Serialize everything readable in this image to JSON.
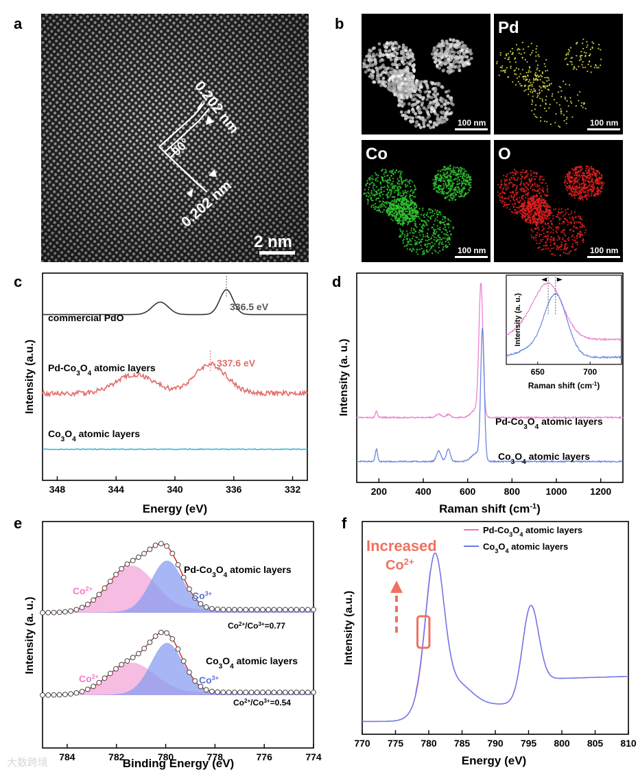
{
  "panels": {
    "a": {
      "letter": "a",
      "annotation_top": "0.202 nm",
      "annotation_bottom": "0.202 nm",
      "angle": "90°",
      "scale": "2 nm"
    },
    "b": {
      "letter": "b",
      "tiles": [
        {
          "name": "",
          "scale": "100 nm"
        },
        {
          "name": "Pd",
          "scale": "100 nm",
          "color": "#e5e54a"
        },
        {
          "name": "Co",
          "scale": "100 nm",
          "color": "#2fc42f"
        },
        {
          "name": "O",
          "scale": "100 nm",
          "color": "#e02020"
        }
      ]
    }
  },
  "chart_data": [
    {
      "panel": "c",
      "type": "line",
      "xlabel": "Energy (eV)",
      "ylabel": "Intensity (a.u.)",
      "xlim": [
        349,
        331
      ],
      "xticks": [
        348,
        344,
        340,
        336,
        332
      ],
      "series": [
        {
          "name": "commercial PdO",
          "color": "#333333",
          "offset": 0.8,
          "peaks": [
            [
              341.0,
              0.06,
              0.55
            ],
            [
              336.5,
              0.12,
              0.45
            ]
          ],
          "noise": 0.0
        },
        {
          "name": "Pd-Co3O4 atomic layers",
          "color": "#e46a6a",
          "offset": 0.42,
          "peaks": [
            [
              342.7,
              0.09,
              1.3
            ],
            [
              337.6,
              0.14,
              1.1
            ]
          ],
          "noise": 0.012
        },
        {
          "name": "Co3O4 atomic layers",
          "color": "#3ab8d8",
          "offset": 0.15,
          "peaks": [],
          "noise": 0.002
        }
      ],
      "annotations": [
        {
          "text": "336.5 eV",
          "x": 336.5,
          "color": "#555555"
        },
        {
          "text": "337.6 eV",
          "x": 337.6,
          "color": "#e46a6a"
        }
      ]
    },
    {
      "panel": "d",
      "type": "line",
      "xlabel": "Raman shift (cm-1)",
      "ylabel": "Intensity (a. u.)",
      "xlim": [
        100,
        1300
      ],
      "xticks": [
        200,
        400,
        600,
        800,
        1000,
        1200
      ],
      "series": [
        {
          "name": "Pd-Co3O4 atomic layers",
          "color": "#ee82d0",
          "offset": 0.31,
          "peaks": [
            [
              189,
              0.03,
              5
            ],
            [
              470,
              0.015,
              12
            ],
            [
              513,
              0.015,
              10
            ],
            [
              660,
              0.62,
              9
            ]
          ]
        },
        {
          "name": "Co3O4 atomic layers",
          "color": "#6a85e0",
          "offset": 0.1,
          "peaks": [
            [
              189,
              0.06,
              5
            ],
            [
              470,
              0.05,
              10
            ],
            [
              513,
              0.06,
              9
            ],
            [
              667,
              0.62,
              8
            ]
          ]
        }
      ],
      "inset": {
        "xlabel": "Raman shift (cm-1)",
        "ylabel": "Intensity (a. u.)",
        "xlim": [
          620,
          730
        ],
        "xticks": [
          650,
          700
        ]
      }
    },
    {
      "panel": "e",
      "type": "area",
      "xlabel": "Binding Energy (eV)",
      "ylabel": "Intensity (a. u.)",
      "xlim": [
        785,
        774
      ],
      "xticks": [
        784,
        782,
        780,
        778,
        776,
        774
      ],
      "groups": [
        {
          "name": "Pd-Co3O4 atomic layers",
          "ratio": "Co2+/Co3+=0.77",
          "co2_center": 781.4,
          "co2_amp": 0.72,
          "co3_center": 779.95,
          "co3_amp": 0.78
        },
        {
          "name": "Co3O4 atomic layers",
          "ratio": "Co2+/Co3+=0.54",
          "co2_center": 781.4,
          "co2_amp": 0.55,
          "co3_center": 779.95,
          "co3_amp": 0.88
        }
      ],
      "co2_label": "Co2+",
      "co3_label": "Co3+",
      "co2_color": "#f4a6d8",
      "co3_color": "#8a9ef0"
    },
    {
      "panel": "f",
      "type": "line",
      "xlabel": "Energy (eV)",
      "ylabel": "Intensity (a.u.)",
      "xlim": [
        770,
        810
      ],
      "xticks": [
        770,
        775,
        780,
        785,
        790,
        795,
        800,
        805,
        810
      ],
      "series": [
        {
          "name": "Pd-Co3O4 atomic layers",
          "color": "#ee6ad0"
        },
        {
          "name": "Co3O4 atomic layers",
          "color": "#6a7ae8"
        }
      ],
      "annotation": {
        "line1": "Increased",
        "line2": "Co2+",
        "color": "#f07060"
      },
      "legend": "top-right"
    }
  ],
  "watermark": "大数跨境"
}
